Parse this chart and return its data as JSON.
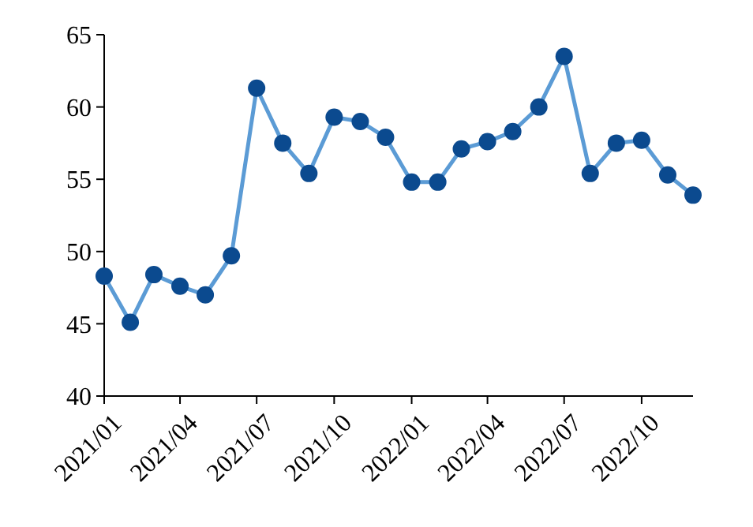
{
  "chart_data": {
    "type": "line",
    "x": [
      "2021-01",
      "2021-02",
      "2021-03",
      "2021-04",
      "2021-05",
      "2021-06",
      "2021-07",
      "2021-08",
      "2021-09",
      "2021-10",
      "2021-11",
      "2021-12",
      "2022-01",
      "2022-02",
      "2022-03",
      "2022-04",
      "2022-05",
      "2022-06",
      "2022-07",
      "2022-08",
      "2022-09",
      "2022-10",
      "2022-11",
      "2022-12"
    ],
    "series": [
      {
        "color": "#5b9bd5",
        "values": [
          48.3,
          45.1,
          48.4,
          47.6,
          47.0,
          49.7,
          61.3,
          57.5,
          55.4,
          59.3,
          59.0,
          57.9,
          54.8,
          54.8,
          57.1,
          57.6,
          58.3,
          60.0,
          63.5,
          55.4,
          57.5,
          57.7,
          55.3,
          53.9
        ]
      }
    ],
    "xlim": [
      "2021-01",
      "2022-12"
    ],
    "xticks": [
      {
        "value": "2021-01",
        "label": "2021/01"
      },
      {
        "value": "2021-04",
        "label": "2021/04"
      },
      {
        "value": "2021-07",
        "label": "2021/07"
      },
      {
        "value": "2021-10",
        "label": "2021/10"
      },
      {
        "value": "2022-01",
        "label": "2022/01"
      },
      {
        "value": "2022-04",
        "label": "2022/04"
      },
      {
        "value": "2022-07",
        "label": "2022/07"
      },
      {
        "value": "2022-10",
        "label": "2022/10"
      }
    ],
    "ylim": [
      40,
      65
    ],
    "yticks": [
      40,
      45,
      50,
      55,
      60,
      65
    ],
    "marker": "circle",
    "line_style": "solid"
  }
}
